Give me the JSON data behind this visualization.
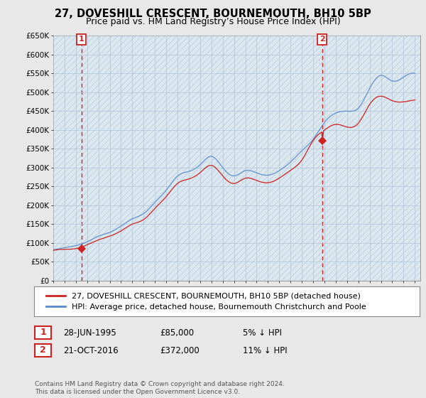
{
  "title_line1": "27, DOVESHILL CRESCENT, BOURNEMOUTH, BH10 5BP",
  "title_line2": "Price paid vs. HM Land Registry’s House Price Index (HPI)",
  "ylim": [
    0,
    650000
  ],
  "yticks": [
    0,
    50000,
    100000,
    150000,
    200000,
    250000,
    300000,
    350000,
    400000,
    450000,
    500000,
    550000,
    600000,
    650000
  ],
  "ytick_labels": [
    "£0",
    "£50K",
    "£100K",
    "£150K",
    "£200K",
    "£250K",
    "£300K",
    "£350K",
    "£400K",
    "£450K",
    "£500K",
    "£550K",
    "£600K",
    "£650K"
  ],
  "bg_color": "#e8e8e8",
  "plot_bg_color": "#dce8f0",
  "grid_color": "#b0c4d8",
  "hpi_color": "#5588cc",
  "price_color": "#cc2222",
  "sale1_date": 1995.49,
  "sale1_price": 85000,
  "sale2_date": 2016.8,
  "sale2_price": 372000,
  "legend_label1": "27, DOVESHILL CRESCENT, BOURNEMOUTH, BH10 5BP (detached house)",
  "legend_label2": "HPI: Average price, detached house, Bournemouth Christchurch and Poole",
  "annotation1_date": "28-JUN-1995",
  "annotation1_price": "£85,000",
  "annotation1_hpi": "5% ↓ HPI",
  "annotation2_date": "21-OCT-2016",
  "annotation2_price": "£372,000",
  "annotation2_hpi": "11% ↓ HPI",
  "footer": "Contains HM Land Registry data © Crown copyright and database right 2024.\nThis data is licensed under the Open Government Licence v3.0.",
  "xmin": 1993.0,
  "xmax": 2025.5
}
